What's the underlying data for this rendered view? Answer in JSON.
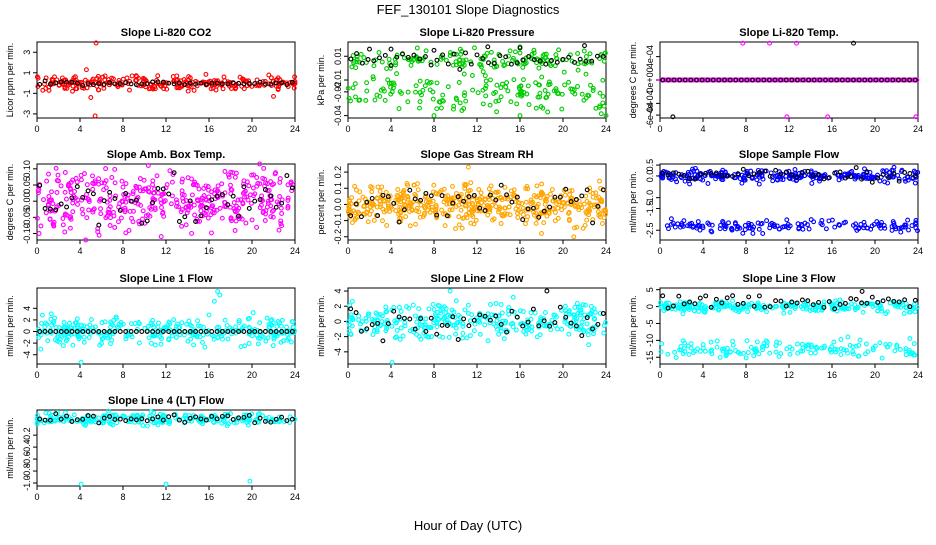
{
  "page": {
    "title": "FEF_130101  Slope Diagnostics",
    "xlabel": "Hour of Day (UTC)"
  },
  "chart_data": [
    {
      "type": "scatter",
      "title": "Slope Li-820 CO2",
      "ylabel": "Licor ppm per min.",
      "xlim": [
        0,
        24
      ],
      "ylim": [
        -3.4,
        4.0
      ],
      "xticks": [
        0,
        4,
        8,
        12,
        16,
        20,
        24
      ],
      "yticks": [
        -3,
        -1,
        1,
        3
      ],
      "yticklabels": [
        "-3",
        "-1",
        "1",
        "3"
      ],
      "series": [
        {
          "name": "all",
          "color": "#ff0000",
          "center": 0.0,
          "spread": 0.35,
          "count": 260,
          "outliers": [
            [
              5.5,
              3.9
            ],
            [
              5.4,
              -3.2
            ],
            [
              4.6,
              1.3
            ],
            [
              5.0,
              -1.4
            ],
            [
              3.3,
              -0.8
            ],
            [
              22.0,
              -1.3
            ],
            [
              13.0,
              0.7
            ]
          ]
        },
        {
          "name": "hourly",
          "color": "#000000",
          "center": 0.0,
          "spread": 0.1,
          "count": 48,
          "outliers": []
        }
      ]
    },
    {
      "type": "scatter",
      "title": "Slope Li-820 Pressure",
      "ylabel": "kPa per min.",
      "xlim": [
        0,
        24
      ],
      "ylim": [
        -0.042,
        0.022
      ],
      "xticks": [
        0,
        4,
        8,
        12,
        16,
        20,
        24
      ],
      "yticks": [
        -0.04,
        -0.02,
        -0.01,
        0.01
      ],
      "yticklabels": [
        "-0.04",
        "-0.02",
        "-0.01",
        "0.01"
      ],
      "series": [
        {
          "name": "upper",
          "color": "#00cc00",
          "center": 0.007,
          "spread": 0.004,
          "count": 150,
          "outliers": []
        },
        {
          "name": "lower",
          "color": "#00cc00",
          "center": -0.02,
          "spread": 0.007,
          "count": 170,
          "outliers": [
            [
              8.0,
              -0.04
            ],
            [
              16.0,
              -0.04
            ],
            [
              24.0,
              -0.04
            ],
            [
              16.0,
              0.018
            ]
          ]
        },
        {
          "name": "hourly",
          "color": "#000000",
          "center": 0.007,
          "spread": 0.003,
          "count": 45,
          "outliers": [
            [
              2.0,
              0.016
            ],
            [
              4.0,
              0.016
            ],
            [
              8.0,
              0.015
            ],
            [
              13.0,
              0.018
            ],
            [
              16.0,
              0.017
            ],
            [
              22.0,
              0.019
            ]
          ]
        }
      ]
    },
    {
      "type": "scatter",
      "title": "Slope Li-820 Temp.",
      "ylabel": "degrees C per min.",
      "xlim": [
        0,
        24
      ],
      "ylim": [
        -0.00065,
        0.00065
      ],
      "xticks": [
        0,
        4,
        8,
        12,
        16,
        20,
        24
      ],
      "yticks": [
        -0.0006,
        -0.0004,
        0,
        0.0004
      ],
      "yticklabels": [
        "-6e-04",
        "-4e-04",
        "0e+00",
        "4e-04"
      ],
      "series": [
        {
          "name": "line",
          "color": "#ff00ff",
          "center": 0.0,
          "spread": 0.0,
          "count": 120,
          "outliers": [
            [
              7.7,
              0.00063
            ],
            [
              10.2,
              0.00063
            ],
            [
              12.7,
              0.00063
            ],
            [
              11.8,
              -0.00063
            ],
            [
              15.6,
              -0.00063
            ],
            [
              23.8,
              -0.00063
            ]
          ]
        },
        {
          "name": "hourly",
          "color": "#000000",
          "center": 0.0,
          "spread": 0.0,
          "count": 46,
          "outliers": [
            [
              1.2,
              -0.00063
            ],
            [
              18.0,
              0.00063
            ]
          ]
        }
      ]
    },
    {
      "type": "scatter",
      "title": "Slope Amb. Box Temp.",
      "ylabel": "degrees C per min.",
      "xlim": [
        0,
        24
      ],
      "ylim": [
        -0.12,
        0.115
      ],
      "xticks": [
        0,
        4,
        8,
        12,
        16,
        20,
        24
      ],
      "yticks": [
        -0.1,
        -0.05,
        0,
        0.05,
        0.1
      ],
      "yticklabels": [
        "-0.10",
        "-0.05",
        "0.00",
        "0.05",
        "0.10"
      ],
      "series": [
        {
          "name": "all",
          "color": "#ff00ff",
          "center": 0.0,
          "spread": 0.045,
          "count": 420,
          "outliers": [
            [
              0.2,
              -0.1
            ]
          ]
        },
        {
          "name": "hourly",
          "color": "#000000",
          "center": 0.0,
          "spread": 0.04,
          "count": 48,
          "outliers": []
        }
      ]
    },
    {
      "type": "scatter",
      "title": "Slope Gas Stream RH",
      "ylabel": "percent per min.",
      "xlim": [
        0,
        24
      ],
      "ylim": [
        -0.22,
        0.25
      ],
      "xticks": [
        0,
        4,
        8,
        12,
        16,
        20,
        24
      ],
      "yticks": [
        -0.2,
        -0.1,
        0,
        0.1,
        0.2
      ],
      "yticklabels": [
        "-0.2",
        "-0.1",
        "0.0",
        "0.1",
        "0.2"
      ],
      "series": [
        {
          "name": "all",
          "color": "#ffa500",
          "center": 0.0,
          "spread": 0.06,
          "count": 480,
          "outliers": [
            [
              11.2,
              0.23
            ],
            [
              10.0,
              -0.15
            ],
            [
              18.0,
              -0.18
            ],
            [
              21.0,
              -0.2
            ]
          ]
        },
        {
          "name": "hourly",
          "color": "#000000",
          "center": 0.0,
          "spread": 0.05,
          "count": 48,
          "outliers": []
        }
      ]
    },
    {
      "type": "scatter",
      "title": "Slope Sample Flow",
      "ylabel": "ml/min per min.",
      "xlim": [
        0,
        24
      ],
      "ylim": [
        -2.95,
        0.55
      ],
      "xticks": [
        0,
        4,
        8,
        12,
        16,
        20,
        24
      ],
      "yticks": [
        -2.5,
        -1.5,
        -1.0,
        0,
        0.5
      ],
      "yticklabels": [
        "-2.5",
        "-1.5",
        "-1.0",
        "0.0",
        "0.5"
      ],
      "series": [
        {
          "name": "upper",
          "color": "#0000ff",
          "center": 0.0,
          "spread": 0.15,
          "count": 260,
          "outliers": []
        },
        {
          "name": "lower",
          "color": "#0000ff",
          "center": -2.3,
          "spread": 0.15,
          "count": 150,
          "outliers": []
        },
        {
          "name": "hourly",
          "color": "#000000",
          "center": 0.05,
          "spread": 0.15,
          "count": 48,
          "outliers": []
        }
      ]
    },
    {
      "type": "scatter",
      "title": "Slope Line 1 Flow",
      "ylabel": "ml/min per min.",
      "xlim": [
        0,
        24
      ],
      "ylim": [
        -5.6,
        7.5
      ],
      "xticks": [
        0,
        4,
        8,
        12,
        16,
        20,
        24
      ],
      "yticks": [
        -4,
        -2,
        0,
        2,
        4
      ],
      "yticklabels": [
        "-4",
        "-2",
        "0",
        "2",
        "4"
      ],
      "series": [
        {
          "name": "all",
          "color": "#00ffff",
          "center": 0.0,
          "spread": 1.2,
          "count": 320,
          "outliers": [
            [
              4.1,
              -5.3
            ],
            [
              16.8,
              6.9
            ],
            [
              17.0,
              6.3
            ],
            [
              16.5,
              5.2
            ]
          ]
        },
        {
          "name": "hourly",
          "color": "#000000",
          "center": 0.0,
          "spread": 0.0,
          "count": 48,
          "outliers": []
        }
      ]
    },
    {
      "type": "scatter",
      "title": "Slope Line 2 Flow",
      "ylabel": "ml/min per min.",
      "xlim": [
        0,
        24
      ],
      "ylim": [
        -5.6,
        4.4
      ],
      "xticks": [
        0,
        4,
        8,
        12,
        16,
        20,
        24
      ],
      "yticks": [
        -4,
        -2,
        0,
        2,
        4
      ],
      "yticklabels": [
        "-4",
        "-2",
        "0",
        "2",
        "4"
      ],
      "series": [
        {
          "name": "all",
          "color": "#00ffff",
          "center": 0.0,
          "spread": 1.2,
          "count": 320,
          "outliers": [
            [
              4.1,
              -5.4
            ],
            [
              9.5,
              4.0
            ]
          ]
        },
        {
          "name": "hourly",
          "color": "#000000",
          "center": 0.0,
          "spread": 1.0,
          "count": 48,
          "outliers": [
            [
              18.5,
              4.0
            ]
          ]
        }
      ]
    },
    {
      "type": "scatter",
      "title": "Slope Line 3 Flow",
      "ylabel": "ml/min per min.",
      "xlim": [
        0,
        24
      ],
      "ylim": [
        -17,
        5.5
      ],
      "xticks": [
        0,
        4,
        8,
        12,
        16,
        20,
        24
      ],
      "yticks": [
        -15,
        -10,
        -5,
        0,
        5
      ],
      "yticklabels": [
        "-15",
        "-10",
        "-5",
        "0",
        "5"
      ],
      "series": [
        {
          "name": "upper",
          "color": "#00ffff",
          "center": 0.0,
          "spread": 0.8,
          "count": 250,
          "outliers": []
        },
        {
          "name": "lower",
          "color": "#00ffff",
          "center": -12.5,
          "spread": 1.3,
          "count": 150,
          "outliers": []
        },
        {
          "name": "hourly",
          "color": "#000000",
          "center": 1.5,
          "spread": 1.1,
          "count": 48,
          "outliers": [
            [
              18.8,
              4.5
            ]
          ]
        }
      ]
    },
    {
      "type": "scatter",
      "title": "Slope Line 4 (LT) Flow",
      "ylabel": "ml/min per min.",
      "xlim": [
        0,
        24
      ],
      "ylim": [
        -1.05,
        0.22
      ],
      "xticks": [
        0,
        4,
        8,
        12,
        16,
        20,
        24
      ],
      "yticks": [
        -1.0,
        -0.8,
        -0.6,
        -0.4,
        -0.2
      ],
      "yticklabels": [
        "-1.0",
        "-0.8",
        "-0.6",
        "-0.4",
        "-0.2"
      ],
      "series": [
        {
          "name": "all",
          "color": "#00ffff",
          "center": 0.07,
          "spread": 0.05,
          "count": 230,
          "outliers": [
            [
              4.1,
              -1.02
            ],
            [
              12.0,
              -1.02
            ],
            [
              19.8,
              -0.97
            ]
          ]
        },
        {
          "name": "hourly",
          "color": "#000000",
          "center": 0.08,
          "spread": 0.035,
          "count": 48,
          "outliers": []
        }
      ]
    }
  ]
}
